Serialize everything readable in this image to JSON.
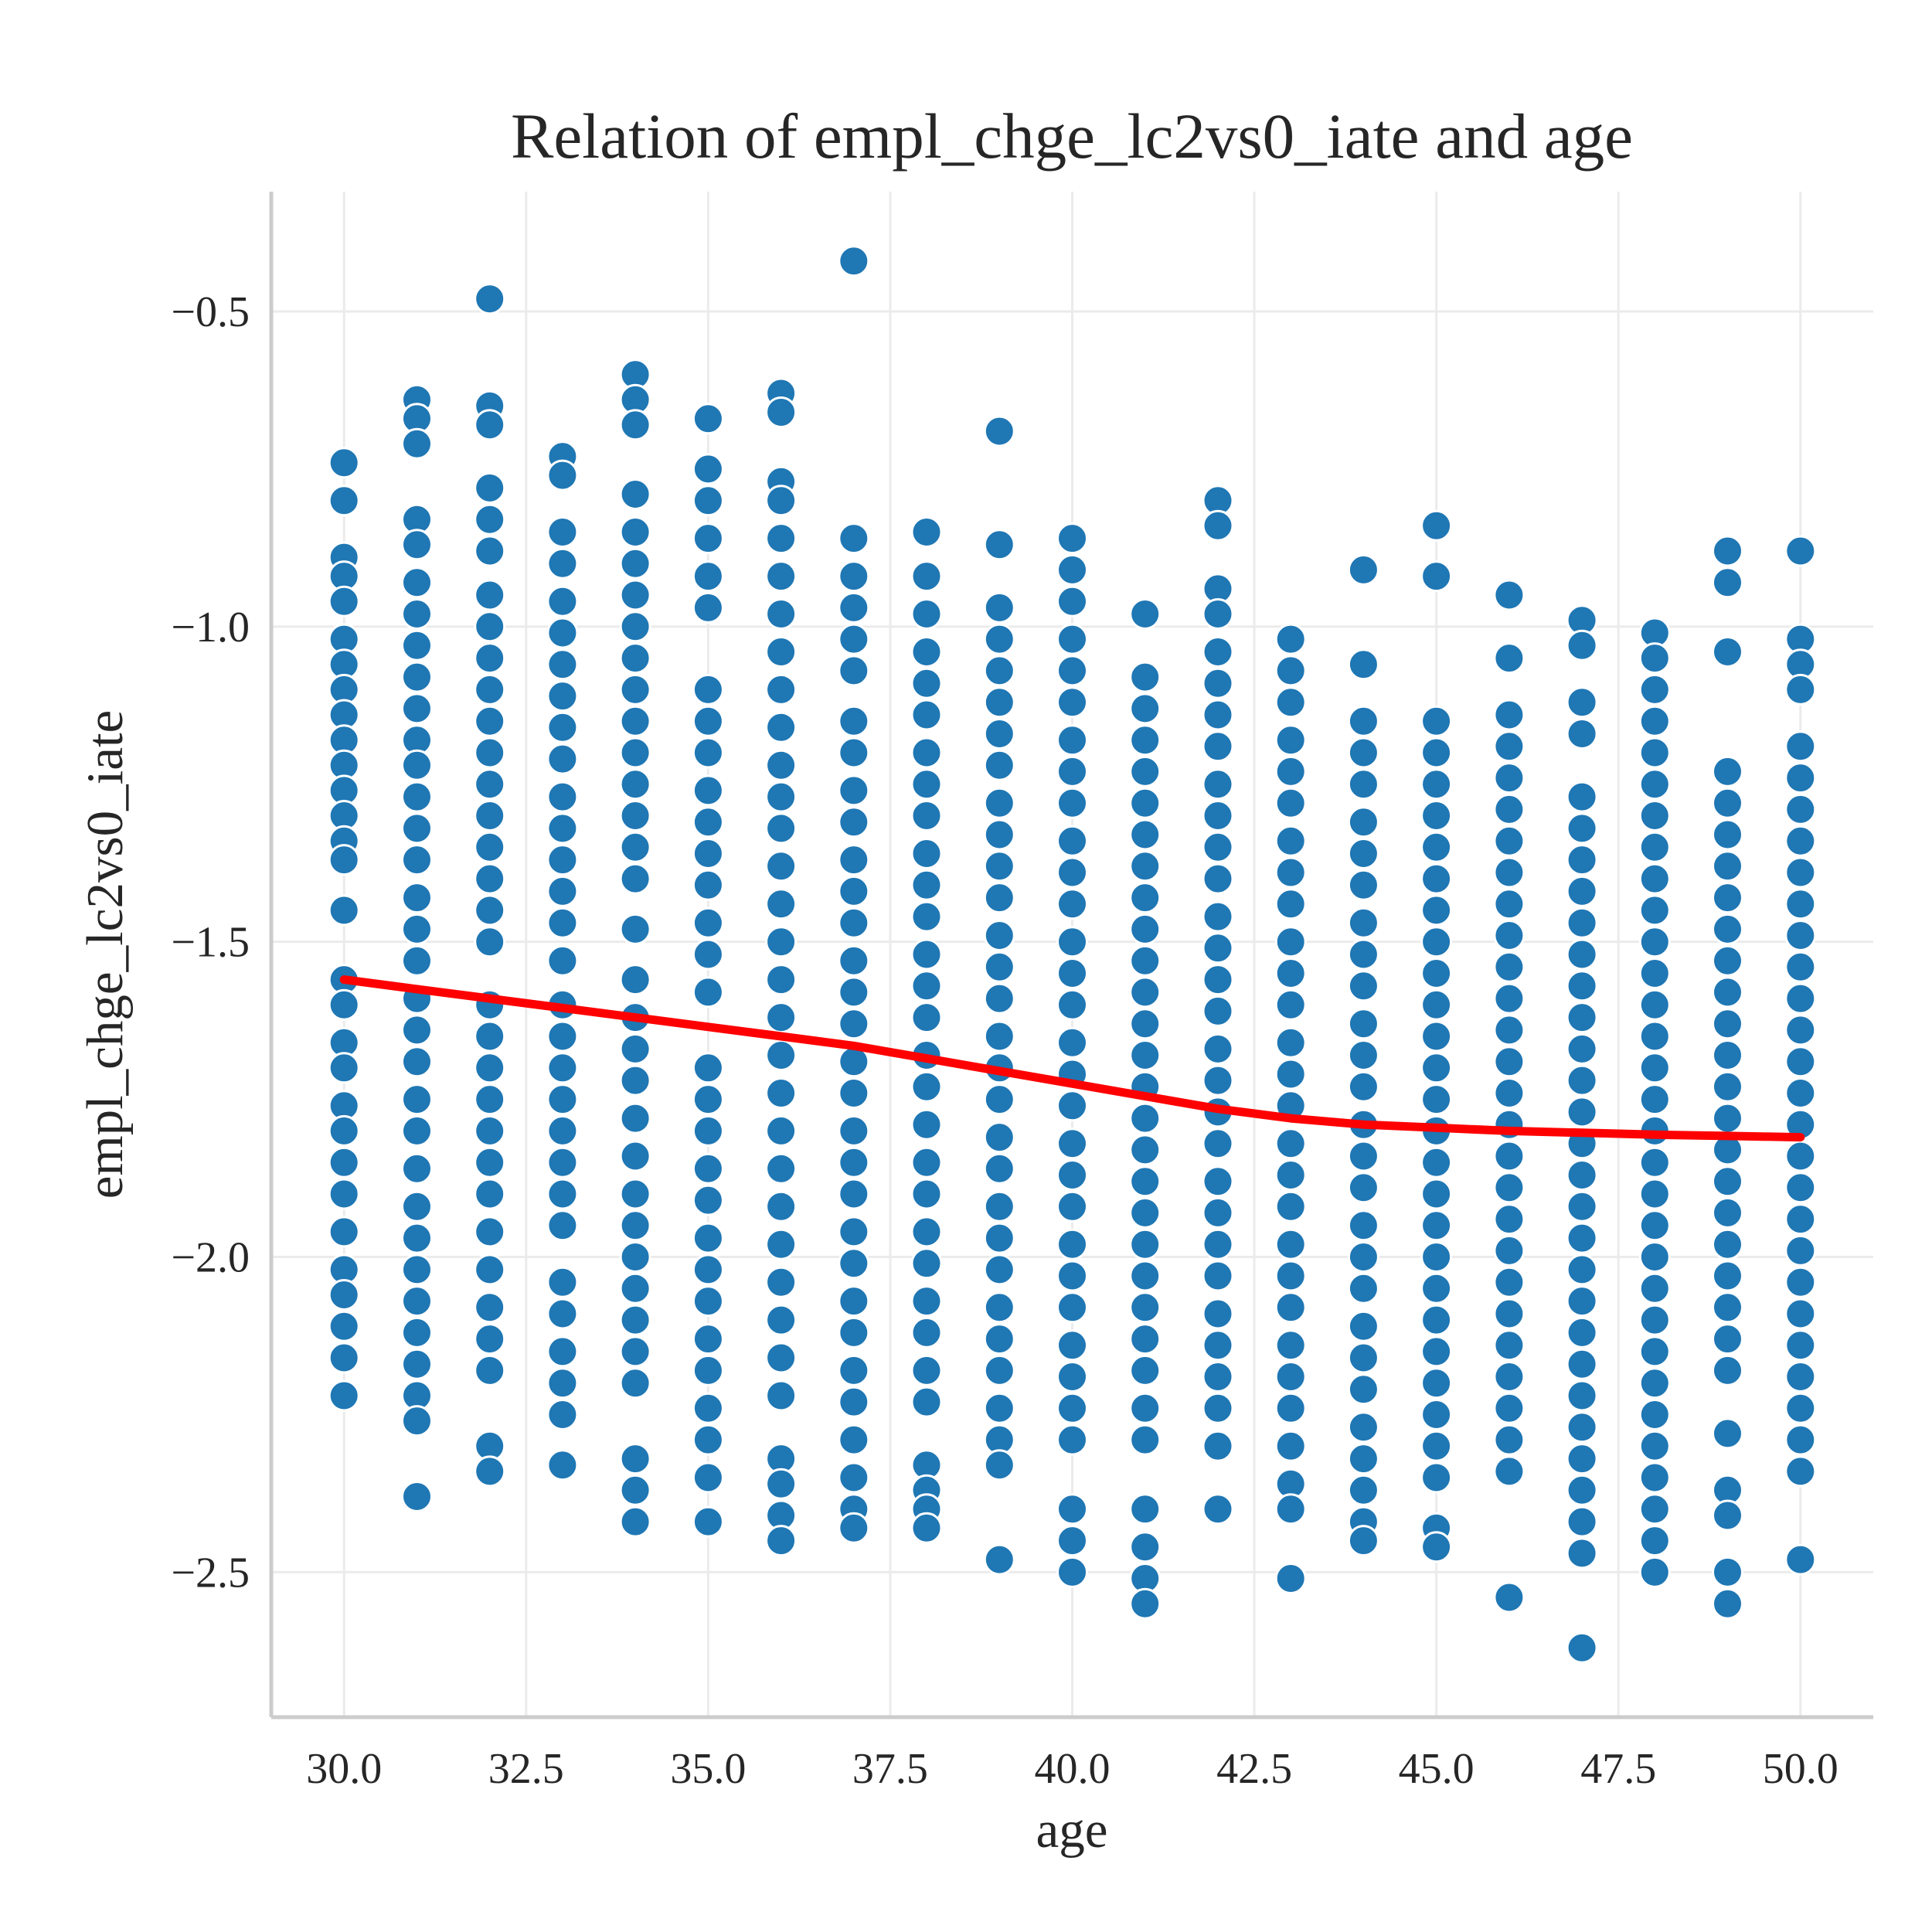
{
  "chart_data": {
    "type": "scatter",
    "title": "Relation of empl_chge_lc2vs0_iate and age",
    "xlabel": "age",
    "ylabel": "empl_chge_lc2vs0_iate",
    "xlim": [
      29.0,
      51.0
    ],
    "ylim": [
      -2.73,
      -0.31
    ],
    "xticks": [
      30.0,
      32.5,
      35.0,
      37.5,
      40.0,
      42.5,
      45.0,
      47.5,
      50.0
    ],
    "xtick_labels": [
      "30.0",
      "32.5",
      "35.0",
      "37.5",
      "40.0",
      "42.5",
      "45.0",
      "47.5",
      "50.0"
    ],
    "yticks": [
      -0.5,
      -1.0,
      -1.5,
      -2.0,
      -2.5
    ],
    "ytick_labels": [
      "−0.5",
      "−1.0",
      "−1.5",
      "−2.0",
      "−2.5"
    ],
    "grid": true,
    "point_color": "#1f77b4",
    "line_color": "#ff0000",
    "series": [
      {
        "type": "scatter",
        "x_ages": [
          30,
          31,
          32,
          33,
          34,
          35,
          36,
          37,
          38,
          39,
          40,
          41,
          42,
          43,
          44,
          45,
          46,
          47,
          48,
          49,
          50
        ],
        "columns": [
          {
            "x": 30,
            "y": [
              -0.74,
              -0.8,
              -0.89,
              -0.92,
              -0.96,
              -1.02,
              -1.06,
              -1.1,
              -1.14,
              -1.18,
              -1.22,
              -1.26,
              -1.3,
              -1.34,
              -1.37,
              -1.45,
              -1.56,
              -1.6,
              -1.66,
              -1.7,
              -1.76,
              -1.8,
              -1.85,
              -1.9,
              -1.96,
              -2.02,
              -2.06,
              -2.11,
              -2.16,
              -2.22
            ]
          },
          {
            "x": 31,
            "y": [
              -0.64,
              -0.67,
              -0.71,
              -0.83,
              -0.87,
              -0.93,
              -0.98,
              -1.03,
              -1.08,
              -1.13,
              -1.18,
              -1.22,
              -1.27,
              -1.32,
              -1.37,
              -1.43,
              -1.48,
              -1.53,
              -1.59,
              -1.64,
              -1.69,
              -1.75,
              -1.8,
              -1.86,
              -1.92,
              -1.97,
              -2.02,
              -2.07,
              -2.12,
              -2.17,
              -2.22,
              -2.26,
              -2.38
            ]
          },
          {
            "x": 32,
            "y": [
              -0.48,
              -0.65,
              -0.68,
              -0.78,
              -0.83,
              -0.88,
              -0.95,
              -1.0,
              -1.05,
              -1.1,
              -1.15,
              -1.2,
              -1.25,
              -1.3,
              -1.35,
              -1.4,
              -1.45,
              -1.5,
              -1.6,
              -1.65,
              -1.7,
              -1.75,
              -1.8,
              -1.85,
              -1.9,
              -1.96,
              -2.02,
              -2.08,
              -2.13,
              -2.18,
              -2.3,
              -2.34
            ]
          },
          {
            "x": 33,
            "y": [
              -0.73,
              -0.76,
              -0.85,
              -0.9,
              -0.96,
              -1.01,
              -1.06,
              -1.11,
              -1.16,
              -1.21,
              -1.27,
              -1.32,
              -1.37,
              -1.42,
              -1.47,
              -1.53,
              -1.6,
              -1.65,
              -1.7,
              -1.75,
              -1.8,
              -1.85,
              -1.9,
              -1.95,
              -2.04,
              -2.09,
              -2.15,
              -2.2,
              -2.25,
              -2.33
            ]
          },
          {
            "x": 34,
            "y": [
              -0.6,
              -0.64,
              -0.68,
              -0.79,
              -0.85,
              -0.9,
              -0.95,
              -1.0,
              -1.05,
              -1.1,
              -1.15,
              -1.2,
              -1.25,
              -1.3,
              -1.35,
              -1.4,
              -1.48,
              -1.56,
              -1.62,
              -1.67,
              -1.72,
              -1.78,
              -1.84,
              -1.9,
              -1.95,
              -2.0,
              -2.05,
              -2.1,
              -2.15,
              -2.2,
              -2.32,
              -2.37,
              -2.42
            ]
          },
          {
            "x": 35,
            "y": [
              -0.67,
              -0.75,
              -0.8,
              -0.86,
              -0.92,
              -0.97,
              -1.1,
              -1.15,
              -1.2,
              -1.26,
              -1.31,
              -1.36,
              -1.41,
              -1.47,
              -1.52,
              -1.58,
              -1.7,
              -1.75,
              -1.8,
              -1.86,
              -1.91,
              -1.97,
              -2.02,
              -2.07,
              -2.13,
              -2.18,
              -2.24,
              -2.29,
              -2.35,
              -2.42
            ]
          },
          {
            "x": 36,
            "y": [
              -0.63,
              -0.66,
              -0.77,
              -0.8,
              -0.86,
              -0.92,
              -0.98,
              -1.04,
              -1.1,
              -1.16,
              -1.22,
              -1.27,
              -1.32,
              -1.38,
              -1.44,
              -1.5,
              -1.56,
              -1.62,
              -1.68,
              -1.74,
              -1.8,
              -1.86,
              -1.92,
              -1.98,
              -2.04,
              -2.1,
              -2.16,
              -2.22,
              -2.32,
              -2.36,
              -2.41,
              -2.45
            ]
          },
          {
            "x": 37,
            "y": [
              -0.42,
              -0.86,
              -0.92,
              -0.97,
              -1.02,
              -1.07,
              -1.15,
              -1.2,
              -1.26,
              -1.31,
              -1.37,
              -1.42,
              -1.47,
              -1.53,
              -1.58,
              -1.63,
              -1.69,
              -1.74,
              -1.8,
              -1.85,
              -1.9,
              -1.96,
              -2.01,
              -2.07,
              -2.12,
              -2.18,
              -2.23,
              -2.29,
              -2.35,
              -2.4,
              -2.43
            ]
          },
          {
            "x": 38,
            "y": [
              -0.85,
              -0.92,
              -0.98,
              -1.04,
              -1.09,
              -1.14,
              -1.2,
              -1.25,
              -1.3,
              -1.36,
              -1.41,
              -1.46,
              -1.52,
              -1.57,
              -1.62,
              -1.68,
              -1.73,
              -1.79,
              -1.85,
              -1.9,
              -1.96,
              -2.01,
              -2.07,
              -2.12,
              -2.18,
              -2.23,
              -2.33,
              -2.37,
              -2.4,
              -2.43
            ]
          },
          {
            "x": 39,
            "y": [
              -0.69,
              -0.87,
              -0.97,
              -1.02,
              -1.07,
              -1.12,
              -1.17,
              -1.22,
              -1.28,
              -1.33,
              -1.38,
              -1.43,
              -1.49,
              -1.54,
              -1.59,
              -1.65,
              -1.7,
              -1.75,
              -1.81,
              -1.86,
              -1.92,
              -1.97,
              -2.02,
              -2.08,
              -2.13,
              -2.18,
              -2.24,
              -2.29,
              -2.33,
              -2.48
            ]
          },
          {
            "x": 40,
            "y": [
              -0.86,
              -0.91,
              -0.96,
              -1.02,
              -1.07,
              -1.12,
              -1.18,
              -1.23,
              -1.28,
              -1.34,
              -1.39,
              -1.44,
              -1.5,
              -1.55,
              -1.6,
              -1.66,
              -1.71,
              -1.76,
              -1.82,
              -1.87,
              -1.92,
              -1.98,
              -2.03,
              -2.08,
              -2.14,
              -2.19,
              -2.24,
              -2.29,
              -2.4,
              -2.45,
              -2.5
            ]
          },
          {
            "x": 41,
            "y": [
              -0.98,
              -1.08,
              -1.13,
              -1.18,
              -1.23,
              -1.28,
              -1.33,
              -1.38,
              -1.43,
              -1.48,
              -1.53,
              -1.58,
              -1.63,
              -1.68,
              -1.73,
              -1.78,
              -1.83,
              -1.88,
              -1.93,
              -1.98,
              -2.03,
              -2.08,
              -2.13,
              -2.18,
              -2.24,
              -2.29,
              -2.4,
              -2.46,
              -2.51,
              -2.55
            ]
          },
          {
            "x": 42,
            "y": [
              -0.8,
              -0.84,
              -0.94,
              -0.98,
              -1.04,
              -1.09,
              -1.14,
              -1.19,
              -1.25,
              -1.3,
              -1.35,
              -1.4,
              -1.46,
              -1.51,
              -1.56,
              -1.61,
              -1.67,
              -1.72,
              -1.77,
              -1.82,
              -1.88,
              -1.93,
              -1.98,
              -2.03,
              -2.09,
              -2.14,
              -2.19,
              -2.24,
              -2.3,
              -2.4
            ]
          },
          {
            "x": 43,
            "y": [
              -1.02,
              -1.07,
              -1.12,
              -1.18,
              -1.23,
              -1.28,
              -1.34,
              -1.39,
              -1.44,
              -1.5,
              -1.55,
              -1.6,
              -1.66,
              -1.71,
              -1.76,
              -1.82,
              -1.87,
              -1.92,
              -1.98,
              -2.03,
              -2.08,
              -2.14,
              -2.19,
              -2.24,
              -2.3,
              -2.36,
              -2.4,
              -2.51
            ]
          },
          {
            "x": 44,
            "y": [
              -0.91,
              -1.06,
              -1.15,
              -1.2,
              -1.25,
              -1.31,
              -1.36,
              -1.41,
              -1.47,
              -1.52,
              -1.57,
              -1.63,
              -1.68,
              -1.73,
              -1.79,
              -1.84,
              -1.89,
              -1.95,
              -2.0,
              -2.05,
              -2.11,
              -2.16,
              -2.21,
              -2.27,
              -2.32,
              -2.37,
              -2.42,
              -2.45
            ]
          },
          {
            "x": 45,
            "y": [
              -0.84,
              -0.92,
              -1.15,
              -1.2,
              -1.25,
              -1.3,
              -1.35,
              -1.4,
              -1.45,
              -1.5,
              -1.55,
              -1.6,
              -1.65,
              -1.7,
              -1.75,
              -1.8,
              -1.85,
              -1.9,
              -1.95,
              -2.0,
              -2.05,
              -2.1,
              -2.15,
              -2.2,
              -2.25,
              -2.3,
              -2.35,
              -2.43,
              -2.46
            ]
          },
          {
            "x": 46,
            "y": [
              -0.95,
              -1.05,
              -1.14,
              -1.19,
              -1.24,
              -1.29,
              -1.34,
              -1.39,
              -1.44,
              -1.49,
              -1.54,
              -1.59,
              -1.64,
              -1.69,
              -1.74,
              -1.79,
              -1.84,
              -1.89,
              -1.94,
              -1.99,
              -2.04,
              -2.09,
              -2.14,
              -2.19,
              -2.24,
              -2.29,
              -2.34,
              -2.54
            ]
          },
          {
            "x": 47,
            "y": [
              -0.99,
              -1.03,
              -1.12,
              -1.17,
              -1.27,
              -1.32,
              -1.37,
              -1.42,
              -1.47,
              -1.52,
              -1.57,
              -1.62,
              -1.67,
              -1.72,
              -1.77,
              -1.82,
              -1.87,
              -1.92,
              -1.97,
              -2.02,
              -2.07,
              -2.12,
              -2.17,
              -2.22,
              -2.27,
              -2.32,
              -2.37,
              -2.42,
              -2.47,
              -2.62
            ]
          },
          {
            "x": 48,
            "y": [
              -1.01,
              -1.05,
              -1.1,
              -1.15,
              -1.2,
              -1.25,
              -1.3,
              -1.35,
              -1.4,
              -1.45,
              -1.5,
              -1.55,
              -1.6,
              -1.65,
              -1.7,
              -1.75,
              -1.8,
              -1.85,
              -1.9,
              -1.95,
              -2.0,
              -2.05,
              -2.1,
              -2.15,
              -2.2,
              -2.25,
              -2.3,
              -2.35,
              -2.4,
              -2.45,
              -2.5
            ]
          },
          {
            "x": 49,
            "y": [
              -0.88,
              -0.93,
              -1.04,
              -1.23,
              -1.28,
              -1.33,
              -1.38,
              -1.43,
              -1.48,
              -1.53,
              -1.58,
              -1.63,
              -1.68,
              -1.73,
              -1.78,
              -1.83,
              -1.88,
              -1.93,
              -1.98,
              -2.03,
              -2.08,
              -2.13,
              -2.18,
              -2.28,
              -2.37,
              -2.41,
              -2.5,
              -2.55
            ]
          },
          {
            "x": 50,
            "y": [
              -0.88,
              -1.02,
              -1.06,
              -1.1,
              -1.19,
              -1.24,
              -1.29,
              -1.34,
              -1.39,
              -1.44,
              -1.49,
              -1.54,
              -1.59,
              -1.64,
              -1.69,
              -1.74,
              -1.79,
              -1.84,
              -1.89,
              -1.94,
              -1.99,
              -2.04,
              -2.09,
              -2.14,
              -2.19,
              -2.24,
              -2.29,
              -2.34,
              -2.48
            ]
          }
        ]
      },
      {
        "type": "line",
        "x": [
          30,
          31,
          32,
          33,
          34,
          35,
          36,
          37,
          38,
          39,
          40,
          41,
          42,
          43,
          44,
          45,
          46,
          47,
          48,
          49,
          50
        ],
        "y": [
          -1.56,
          -1.575,
          -1.59,
          -1.605,
          -1.62,
          -1.635,
          -1.65,
          -1.665,
          -1.685,
          -1.705,
          -1.725,
          -1.745,
          -1.765,
          -1.78,
          -1.79,
          -1.795,
          -1.8,
          -1.803,
          -1.806,
          -1.808,
          -1.81
        ]
      }
    ]
  }
}
